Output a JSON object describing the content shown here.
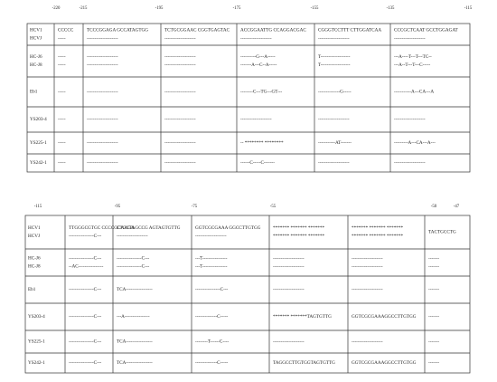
{
  "top": {
    "ticks": [
      "-220",
      "-215",
      "-195",
      "-175",
      "-155",
      "-135",
      "-115"
    ],
    "rows": [
      {
        "labels": [
          "HCV1",
          "HCVJ"
        ],
        "cells": [
          [
            "CCCCC",
            "-----"
          ],
          [
            "TCCCGGAGA GCCATAGTGG",
            "--------------------"
          ],
          [
            "TCTGCGGAAC CGGTGAGTAC",
            "--------------------"
          ],
          [
            "ACCGGAATTG CCAGGACGAC",
            "--------------------"
          ],
          [
            "CGGGTCCTTT CTTGGATCAA",
            "--------------------"
          ],
          [
            "CCCGCTCAAT GCCTGGAGAT",
            "--------------------"
          ]
        ]
      },
      {
        "labels": [
          "HC-J6",
          "HC-J8"
        ],
        "cells": [
          [
            "-----",
            "-----"
          ],
          [
            "--------------------",
            "--------------------"
          ],
          [
            "--------------------",
            "--------------------"
          ],
          [
            "----------G---A-----",
            "-------A---C--A-----"
          ],
          [
            "T-------------------",
            "T-------------------"
          ],
          [
            "---A----T---T---TC--",
            "---A--T---T---C-----"
          ]
        ]
      },
      {
        "labels": [
          "Eb1"
        ],
        "cells": [
          [
            "-----"
          ],
          [
            "--------------------"
          ],
          [
            "--------------------"
          ],
          [
            "--------C---TG---GT---"
          ],
          [
            "--------------G-----"
          ],
          [
            "-----------A---CA---A"
          ]
        ]
      },
      {
        "labels": [
          "YS203-4"
        ],
        "cells": [
          [
            "-----"
          ],
          [
            "--------------------"
          ],
          [
            "--------------------"
          ],
          [
            "--------------------"
          ],
          [
            "--------------------"
          ],
          [
            "--------------------"
          ]
        ]
      },
      {
        "labels": [
          "YS225-1"
        ],
        "cells": [
          [
            "-----"
          ],
          [
            "--------------------"
          ],
          [
            "--------------------"
          ],
          [
            "-- ******** ********"
          ],
          [
            "-----------AT-------"
          ],
          [
            "---------A---CA---A---"
          ]
        ]
      },
      {
        "labels": [
          "YS242-1"
        ],
        "cells": [
          [
            "-----"
          ],
          [
            "--------------------"
          ],
          [
            "--------------------"
          ],
          [
            "------C-----C-------"
          ],
          [
            "--------------------"
          ],
          [
            "--------------------"
          ]
        ]
      }
    ]
  },
  "bottom": {
    "ticks": [
      "-115",
      "-95",
      "-75",
      "-55",
      "-50",
      "-47"
    ],
    "rows": [
      {
        "labels": [
          "HCV1",
          "HCVJ"
        ],
        "cells": [
          [
            "TTGGGCGTGC CCCCGCAAGA",
            "----------------C---"
          ],
          [
            "CTGCTAGCCG AGTAGTGTTG",
            "--------------------"
          ],
          [
            "GGTCGCGAAA GGCCTTGTGG",
            "--------------------"
          ],
          [
            "******* ******* *******",
            "******* ******* *******"
          ],
          [
            "******* ******* *******",
            "******* ******* *******"
          ],
          [
            "TACTGCCTG"
          ]
        ]
      },
      {
        "labels": [
          "HC-J6",
          "HC-J8"
        ],
        "cells": [
          [
            "----------------C---",
            "--AC----------------"
          ],
          [
            "----------------C---",
            "----------------C---"
          ],
          [
            "---T----------------",
            "---T----------------"
          ],
          [
            "--------------------",
            "--------------------"
          ],
          [
            "--------------------",
            "--------------------"
          ],
          [
            "-------",
            "-------"
          ]
        ]
      },
      {
        "labels": [
          "Eb1"
        ],
        "cells": [
          [
            "----------------C---"
          ],
          [
            "TCA-----------------"
          ],
          [
            "----------------C---"
          ],
          [
            "--------------------"
          ],
          [
            "--------------------"
          ],
          [
            "-------"
          ]
        ]
      },
      {
        "labels": [
          "YS203-4"
        ],
        "cells": [
          [
            "----------------C---"
          ],
          [
            "---A----------------"
          ],
          [
            "--------------C-----"
          ],
          [
            "******* *******TAGTGTTG"
          ],
          [
            "GGTCGCGAAAGGCCTTGTGG"
          ],
          [
            "-------"
          ]
        ]
      },
      {
        "labels": [
          "YS225-1"
        ],
        "cells": [
          [
            "----------------C---"
          ],
          [
            "TCA-----------------"
          ],
          [
            "--------T------C----"
          ],
          [
            "--------------------"
          ],
          [
            "--------------------"
          ],
          [
            "-------"
          ]
        ]
      },
      {
        "labels": [
          "YS242-1"
        ],
        "cells": [
          [
            "----------------C---"
          ],
          [
            "TCA-----------------"
          ],
          [
            "--------------C-----"
          ],
          [
            "TAGGCCTTGTGGTAGTGTTG"
          ],
          [
            "GGTCGCGAAAGGCCTTGTGG"
          ],
          [
            "-------"
          ]
        ]
      }
    ]
  }
}
